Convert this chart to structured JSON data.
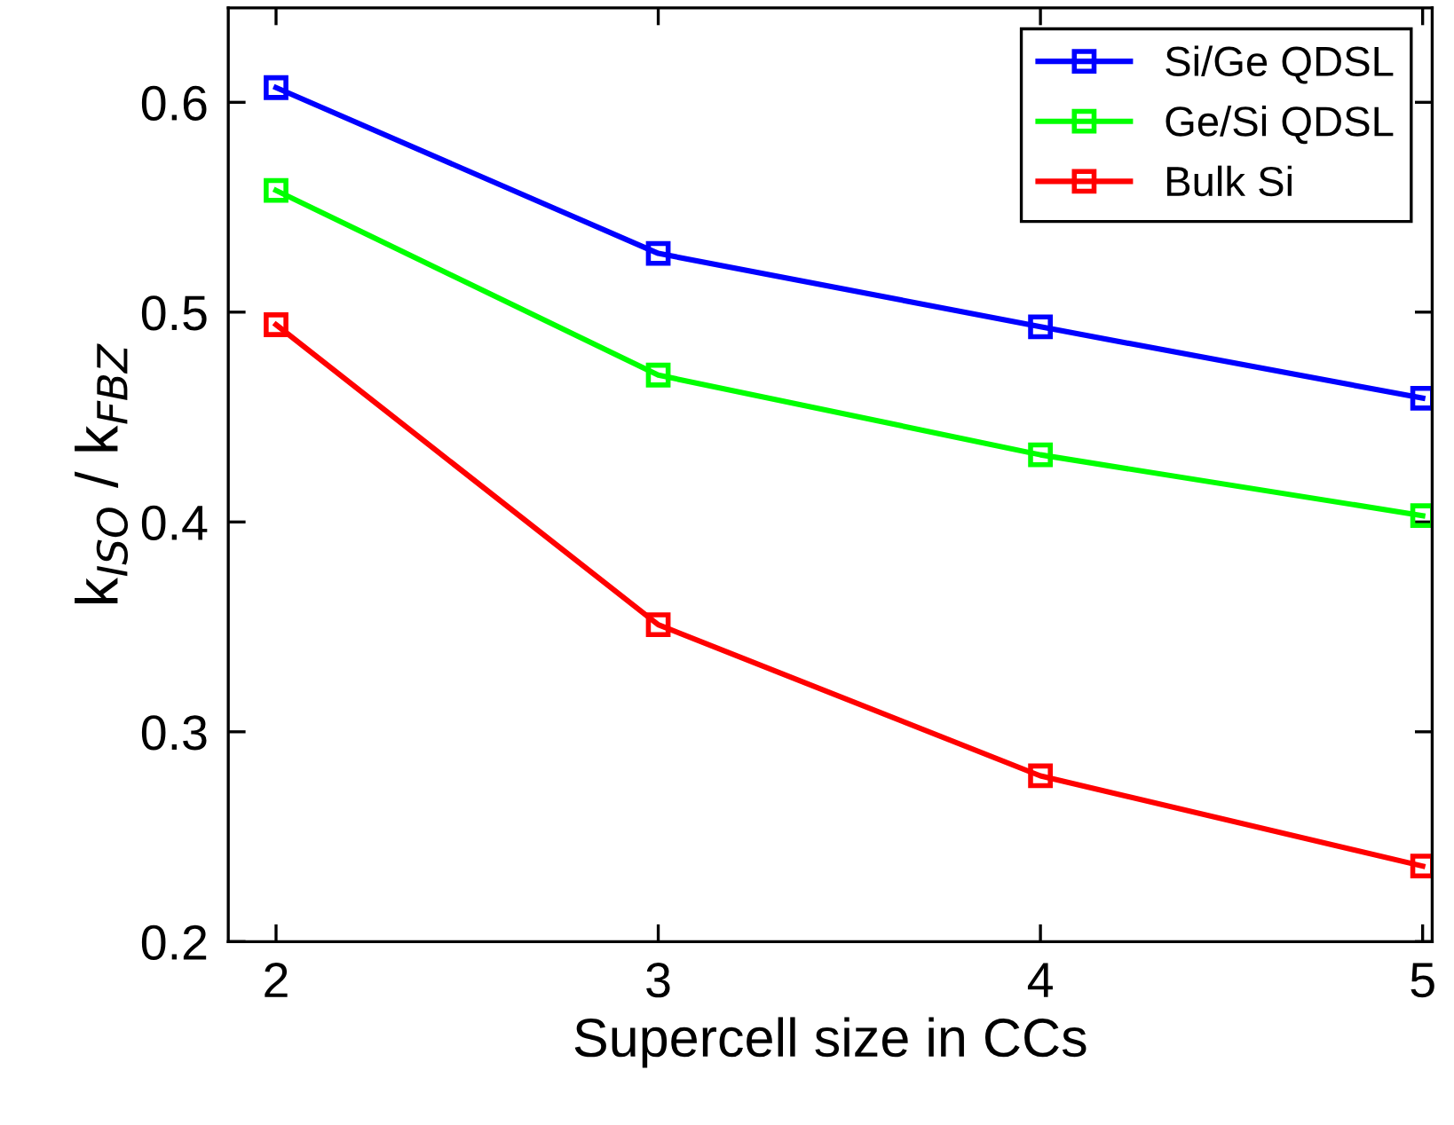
{
  "chart_data": {
    "type": "line",
    "xlabel": "Supercell size in CCs",
    "ylabel": "k$_{ISO}$ / k$_{FBZ}$",
    "x": [
      2,
      3,
      4,
      5
    ],
    "series": [
      {
        "name": "Si/Ge QDSL",
        "color": "#0000ff",
        "values": [
          0.607,
          0.528,
          0.493,
          0.459
        ]
      },
      {
        "name": "Ge/Si QDSL",
        "color": "#00ff00",
        "values": [
          0.558,
          0.47,
          0.432,
          0.403
        ]
      },
      {
        "name": "Bulk Si",
        "color": "#ff0000",
        "values": [
          0.494,
          0.351,
          0.279,
          0.236
        ]
      }
    ],
    "xlim": [
      1.875,
      5.025
    ],
    "ylim": [
      0.2,
      0.645
    ],
    "xticks": [
      2,
      3,
      4,
      5
    ],
    "yticks": [
      0.2,
      0.3,
      0.4,
      0.5,
      0.6
    ],
    "legend": "top right",
    "marker": "square",
    "line_style": "solid",
    "grid": false
  }
}
